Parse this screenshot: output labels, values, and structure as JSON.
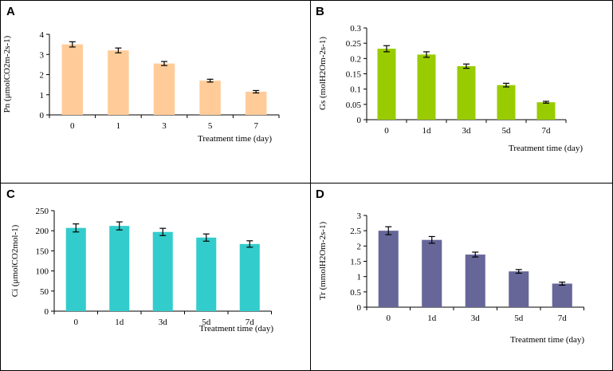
{
  "chart_data": [
    {
      "panel": "A",
      "type": "bar",
      "categories": [
        "0",
        "1",
        "3",
        "5",
        "7"
      ],
      "values": [
        3.5,
        3.2,
        2.55,
        1.7,
        1.15
      ],
      "errors": [
        0.13,
        0.12,
        0.1,
        0.07,
        0.06
      ],
      "ylabel": "Pn (μmolCO2m-2s-1)",
      "xlabel": "Treatment time (day)",
      "ylim": [
        0,
        4
      ],
      "yticks": [
        "0",
        "1",
        "2",
        "3",
        "4"
      ],
      "color": "#FFCC99",
      "grid": false
    },
    {
      "panel": "B",
      "type": "bar",
      "categories": [
        "0",
        "1d",
        "3d",
        "5d",
        "7d"
      ],
      "values": [
        0.232,
        0.213,
        0.175,
        0.113,
        0.057
      ],
      "errors": [
        0.01,
        0.009,
        0.007,
        0.006,
        0.003
      ],
      "ylabel": "Gs (molH2Om-2s-1)",
      "xlabel": "Treatment time (day)",
      "ylim": [
        0,
        0.3
      ],
      "yticks": [
        "0",
        "0.05",
        "0.1",
        "0.15",
        "0.2",
        "0.25",
        "0.3"
      ],
      "color": "#99CC00",
      "grid": false
    },
    {
      "panel": "C",
      "type": "bar",
      "categories": [
        "0",
        "1d",
        "3d",
        "5d",
        "7d"
      ],
      "values": [
        207,
        212,
        197,
        183,
        167
      ],
      "errors": [
        10,
        10,
        9,
        9,
        8
      ],
      "ylabel": "Ci (μmolCO2mol-1)",
      "xlabel": "Treatment time (day)",
      "ylim": [
        0,
        250
      ],
      "yticks": [
        "0",
        "50",
        "100",
        "150",
        "200",
        "250"
      ],
      "color": "#33CCCC",
      "grid": false
    },
    {
      "panel": "D",
      "type": "bar",
      "categories": [
        "0",
        "1d",
        "3d",
        "5d",
        "7d"
      ],
      "values": [
        2.5,
        2.2,
        1.72,
        1.17,
        0.77
      ],
      "errors": [
        0.13,
        0.11,
        0.08,
        0.06,
        0.05
      ],
      "ylabel": "Tr (mmolH2Om-2s-1)",
      "xlabel": "Treatment time (day)",
      "ylim": [
        0,
        3
      ],
      "yticks": [
        "0",
        "0.5",
        "1",
        "1.5",
        "2",
        "2.5",
        "3"
      ],
      "color": "#666699",
      "grid": false
    }
  ]
}
